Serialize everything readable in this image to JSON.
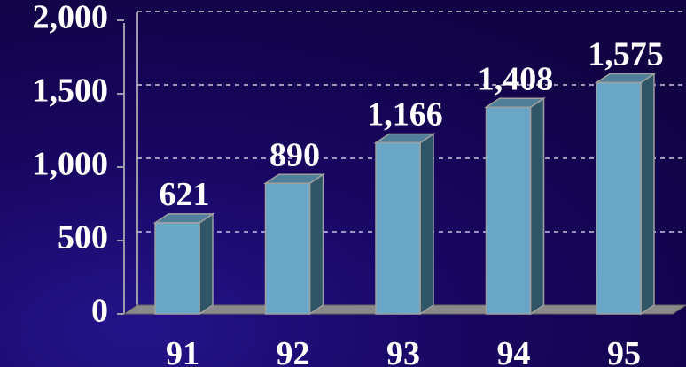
{
  "chart_data": {
    "type": "bar3d",
    "categories": [
      "91",
      "92",
      "93",
      "94",
      "95"
    ],
    "values": [
      621,
      890,
      1166,
      1408,
      1575
    ],
    "value_labels": [
      "621",
      "890",
      "1,166",
      "1,408",
      "1,575"
    ],
    "color": "#6aa6c8",
    "ylim": [
      0,
      2000
    ],
    "yticks": [
      0,
      500,
      {
        "value": 1000,
        "label": "1,000"
      },
      {
        "value": 1500,
        "label": "1,500"
      },
      {
        "value": 2000,
        "label": "2,000"
      }
    ],
    "grid": true
  }
}
